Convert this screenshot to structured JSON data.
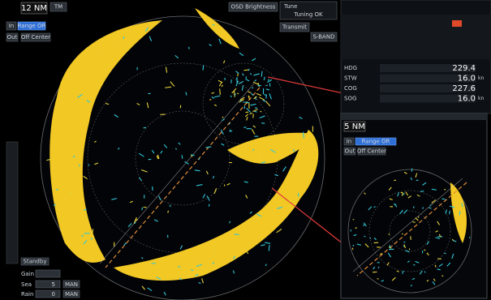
{
  "top_bar": {
    "range": "12 NM",
    "mode": "TM",
    "brightness": "OSD Brightness",
    "tune": "Tune",
    "tune_status": "Tuning OK",
    "transmit": "Transmit",
    "sband": "S-BAND"
  },
  "left_controls": {
    "range_btn": "Range OR",
    "in": "In",
    "out": "Out",
    "off_center": "Off Center",
    "standby": "Standby",
    "gain": "Gain",
    "sea": "Sea",
    "sea_value": "5",
    "rain": "Rain",
    "rain_value": "0",
    "man_sea": "MAN",
    "man_rain": "MAN"
  },
  "nav_panel": {
    "rows": [
      {
        "label": "HDG",
        "value": "229.4"
      },
      {
        "label": "STW",
        "value": "16.0",
        "unit": "kn"
      },
      {
        "label": "COG",
        "value": "227.6"
      },
      {
        "label": "SOG",
        "value": "16.0",
        "unit": "kn"
      }
    ]
  },
  "inset": {
    "range": "5 NM",
    "range_btn": "Range OR",
    "in": "In",
    "out": "Out",
    "off_center": "Off Center"
  }
}
